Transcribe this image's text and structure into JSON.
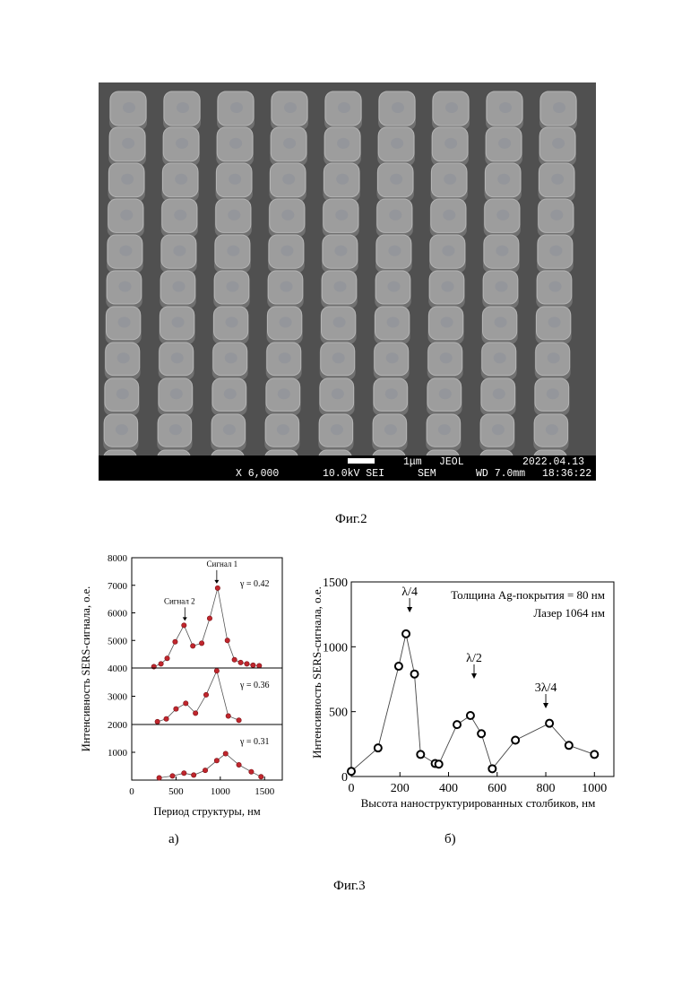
{
  "figure2": {
    "caption": "Фиг.2",
    "sem_info": {
      "scale": "1μm",
      "maker": "JEOL",
      "date": "2022.04.13",
      "magnification": "X 6,000",
      "voltage_detector": "10.0kV SEI",
      "mode": "SEM",
      "working_distance": "WD 7.0mm",
      "time": "18:36:22"
    }
  },
  "figure3": {
    "caption": "Фиг.3",
    "sub_a": "а)",
    "sub_b": "б)"
  },
  "chart_data": [
    {
      "id": "a",
      "type": "scatter",
      "xlabel": "Период структуры, нм",
      "ylabel": "Интенсивность SERS-сигнала, о.е.",
      "xlim": [
        0,
        1700
      ],
      "x_ticks": [
        "0",
        "500",
        "1000",
        "1500"
      ],
      "colors": {
        "marker": "#c0262d",
        "marker_edge": "#7a1015",
        "line": "#555555"
      },
      "panels": [
        {
          "gamma_label": "γ = 0.42",
          "ylim": [
            4000,
            8000
          ],
          "y_ticks": [
            "4000",
            "5000",
            "6000",
            "7000",
            "8000"
          ],
          "annotations": [
            {
              "text": "Сигнал 1",
              "x": 960,
              "y": 6900
            },
            {
              "text": "Сигнал 2",
              "x": 600,
              "y": 5550
            }
          ],
          "x": [
            250,
            330,
            400,
            490,
            590,
            690,
            790,
            880,
            970,
            1080,
            1160,
            1230,
            1300,
            1370,
            1440
          ],
          "values": [
            4050,
            4150,
            4350,
            4950,
            5550,
            4800,
            4900,
            5800,
            6900,
            5000,
            4300,
            4200,
            4150,
            4100,
            4080
          ]
        },
        {
          "gamma_label": "γ = 0.36",
          "ylim": [
            2000,
            4000
          ],
          "y_ticks": [
            "2000",
            "3000"
          ],
          "x": [
            290,
            390,
            500,
            610,
            720,
            840,
            960,
            1090,
            1210
          ],
          "values": [
            2100,
            2200,
            2550,
            2750,
            2400,
            3050,
            3900,
            2300,
            2150
          ]
        },
        {
          "gamma_label": "γ = 0.31",
          "ylim": [
            0,
            2000
          ],
          "y_ticks": [
            "1000"
          ],
          "x": [
            310,
            460,
            590,
            700,
            830,
            960,
            1060,
            1210,
            1350,
            1460
          ],
          "values": [
            80,
            150,
            250,
            180,
            350,
            700,
            950,
            550,
            300,
            120
          ]
        }
      ]
    },
    {
      "id": "b",
      "type": "line",
      "xlabel": "Высота наноструктурированных столбиков, нм",
      "ylabel": "Интенсивность SERS-сигнала, о.е.",
      "xlim": [
        0,
        1080
      ],
      "ylim": [
        0,
        1500
      ],
      "x_ticks": [
        "0",
        "200",
        "400",
        "600",
        "800",
        "1000"
      ],
      "y_ticks": [
        "0",
        "500",
        "1000",
        "1500"
      ],
      "legend_lines": [
        "Толщина Ag-покрытия = 80 нм",
        "Лазер 1064 нм"
      ],
      "annotations": [
        {
          "text": "λ/4",
          "x": 240
        },
        {
          "text": "λ/2",
          "x": 505
        },
        {
          "text": "3λ/4",
          "x": 800
        }
      ],
      "x": [
        0,
        110,
        195,
        225,
        260,
        285,
        345,
        360,
        435,
        490,
        535,
        580,
        675,
        815,
        895,
        1000
      ],
      "values": [
        40,
        220,
        850,
        1100,
        790,
        170,
        100,
        95,
        400,
        470,
        330,
        60,
        280,
        410,
        240,
        170
      ]
    }
  ]
}
